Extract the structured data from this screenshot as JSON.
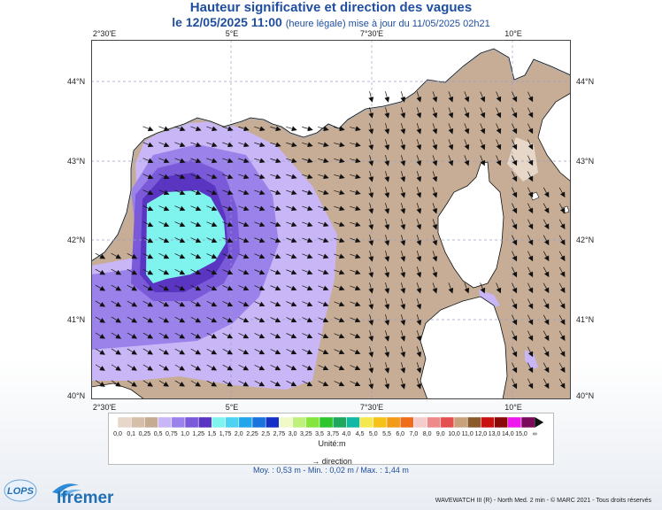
{
  "title": "Hauteur significative et direction des vagues",
  "subtitle": {
    "date": "le 12/05/2025 11:00",
    "note": "(heure légale) mise à jour du 11/05/2025 02h21"
  },
  "lon_ticks": [
    "2°30'E",
    "5°E",
    "7°30'E",
    "10°E"
  ],
  "lat_ticks": [
    "44°N",
    "43°N",
    "42°N",
    "41°N",
    "40°N"
  ],
  "legend": {
    "unit": "Unité:m",
    "direction_label": "direction",
    "labels": [
      "0,0",
      "0,1",
      "0,25",
      "0,5",
      "0,75",
      "1,0",
      "1,25",
      "1,5",
      "1,75",
      "2,0",
      "2,25",
      "2,5",
      "2,75",
      "3,0",
      "3,25",
      "3,5",
      "3,75",
      "4,0",
      "4,5",
      "5,0",
      "5,5",
      "6,0",
      "7,0",
      "8,0",
      "9,0",
      "10,0",
      "11,0",
      "12,0",
      "13,0",
      "14,0",
      "15,0",
      "∞"
    ],
    "colors": [
      "#e7d7c8",
      "#d6bfaa",
      "#c6ab93",
      "#c9b6f7",
      "#9b82ea",
      "#7a5ad8",
      "#5a35c2",
      "#7ff3ee",
      "#4ed2f2",
      "#21a6ea",
      "#1a72dd",
      "#1530c6",
      "#f0fac8",
      "#bff07c",
      "#85e53d",
      "#2dc62d",
      "#1ea85e",
      "#12b8a4",
      "#f5e84e",
      "#f5c21a",
      "#f29b19",
      "#ef6c1a",
      "#f4cccc",
      "#ee8a8a",
      "#e45050",
      "#c8a27c",
      "#8b5a2b",
      "#c81212",
      "#8b0808",
      "#ee18ee",
      "#7a0a5a"
    ]
  },
  "stats": "Moy. : 0,53 m   -   Min. : 0,02 m / Max. : 1,44 m",
  "credit": "WAVEWATCH III (R) - North Med. 2 min - © MARC 2021 - Tous droits réservés",
  "logos": {
    "lops": "LOPS",
    "ifremer": "Ifremer"
  },
  "colors": {
    "title": "#1f4e9e",
    "land": "#ffffff",
    "coast_shadow": "#a8a8a8",
    "calm_sea": "#c7ad95"
  }
}
